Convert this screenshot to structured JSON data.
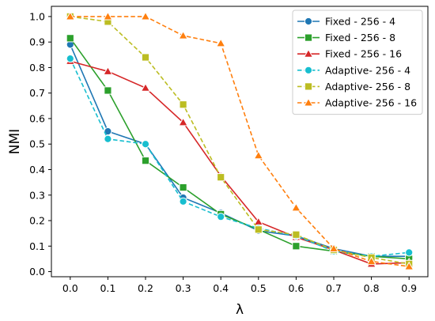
{
  "chart_data": {
    "type": "line",
    "title": "",
    "xlabel": "λ",
    "ylabel": "NMI",
    "x": [
      0.0,
      0.1,
      0.2,
      0.3,
      0.4,
      0.5,
      0.6,
      0.7,
      0.8,
      0.9
    ],
    "x_ticks": [
      "0.0",
      "0.1",
      "0.2",
      "0.3",
      "0.4",
      "0.5",
      "0.6",
      "0.7",
      "0.8",
      "0.9"
    ],
    "y_ticks": [
      "0.0",
      "0.1",
      "0.2",
      "0.3",
      "0.4",
      "0.5",
      "0.6",
      "0.7",
      "0.8",
      "0.9",
      "1.0"
    ],
    "xlim": [
      -0.05,
      0.95
    ],
    "ylim": [
      -0.02,
      1.04
    ],
    "grid": false,
    "legend_position": "top-right",
    "series": [
      {
        "name": "Fixed - 256 - 4",
        "color": "#1f77b4",
        "marker": "circle",
        "dashed": false,
        "values": [
          0.89,
          0.55,
          0.5,
          0.29,
          0.23,
          0.16,
          0.14,
          0.09,
          0.06,
          0.06
        ]
      },
      {
        "name": "Fixed - 256 - 8",
        "color": "#2ca02c",
        "marker": "square",
        "dashed": false,
        "values": [
          0.915,
          0.71,
          0.435,
          0.33,
          0.225,
          0.165,
          0.1,
          0.08,
          0.06,
          0.05
        ]
      },
      {
        "name": "Fixed - 256 - 16",
        "color": "#d62728",
        "marker": "triangle",
        "dashed": false,
        "values": [
          0.825,
          0.785,
          0.72,
          0.585,
          0.375,
          0.195,
          0.135,
          0.085,
          0.03,
          0.035
        ]
      },
      {
        "name": "Adaptive- 256 - 4",
        "color": "#17becf",
        "marker": "circle",
        "dashed": true,
        "values": [
          0.835,
          0.52,
          0.5,
          0.275,
          0.215,
          0.17,
          0.14,
          0.08,
          0.06,
          0.075
        ]
      },
      {
        "name": "Adaptive- 256 - 8",
        "color": "#bcbd22",
        "marker": "square",
        "dashed": true,
        "values": [
          1.0,
          0.98,
          0.84,
          0.655,
          0.37,
          0.165,
          0.145,
          0.085,
          0.055,
          0.03
        ]
      },
      {
        "name": "Adaptive- 256 - 16",
        "color": "#ff7f0e",
        "marker": "triangle",
        "dashed": true,
        "values": [
          1.0,
          1.0,
          1.0,
          0.925,
          0.895,
          0.455,
          0.25,
          0.09,
          0.04,
          0.02
        ]
      }
    ]
  }
}
